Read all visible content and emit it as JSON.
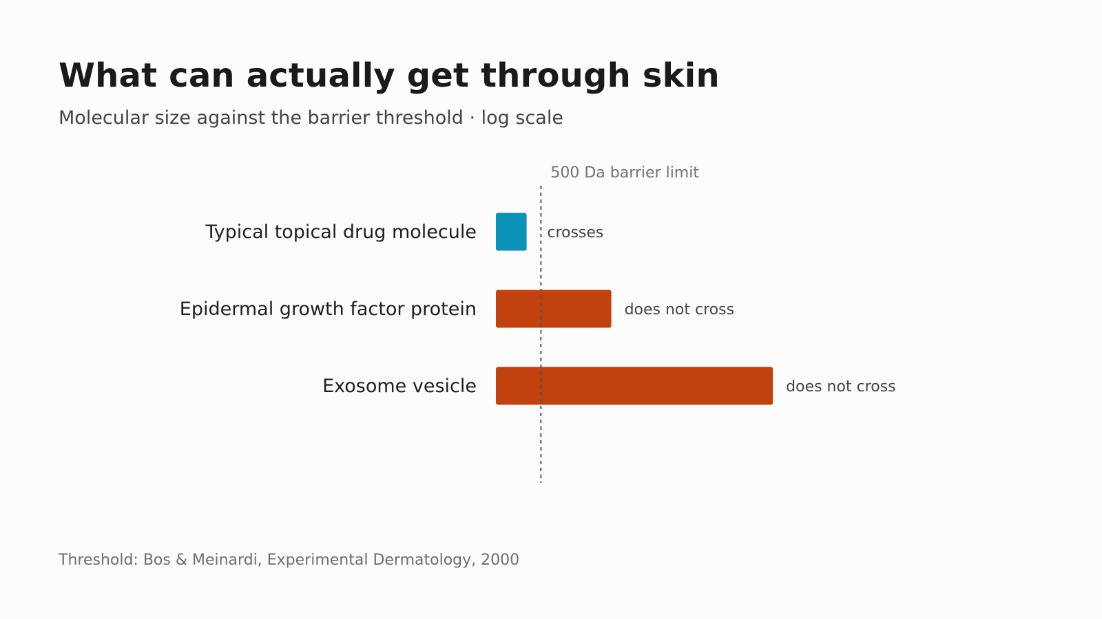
{
  "chart_data": {
    "type": "bar",
    "orientation": "horizontal",
    "title": "What can actually get through skin",
    "subtitle": "Molecular size against the barrier threshold · log scale",
    "x_scale": "log",
    "unit": "Da",
    "categories": [
      "Typical topical drug molecule",
      "Epidermal growth factor protein",
      "Exosome vesicle"
    ],
    "values": [
      300,
      6200,
      2000000
    ],
    "status_labels": [
      "crosses",
      "does not cross",
      "does not cross"
    ],
    "bar_colors": [
      "#0a93b8",
      "#c1410f",
      "#c1410f"
    ],
    "xlim": [
      100,
      20000000
    ],
    "threshold": {
      "value": 500,
      "label": "500 Da barrier limit"
    },
    "grid": false,
    "source": "Threshold: Bos & Meinardi, Experimental Dermatology, 2000"
  }
}
